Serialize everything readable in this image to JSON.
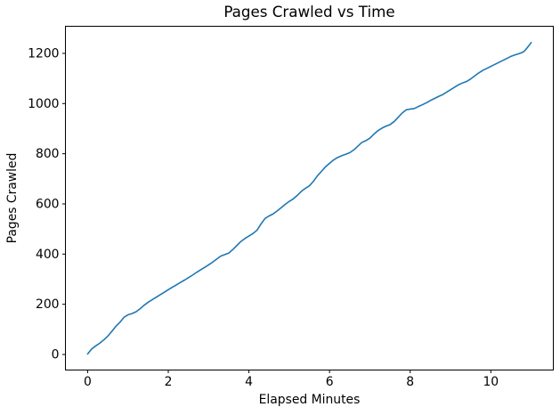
{
  "chart_data": {
    "type": "line",
    "title": "Pages Crawled vs Time",
    "xlabel": "Elapsed Minutes",
    "ylabel": "Pages Crawled",
    "xlim": [
      -0.55,
      11.55
    ],
    "ylim": [
      -62,
      1308
    ],
    "xticks": [
      0,
      2,
      4,
      6,
      8,
      10
    ],
    "yticks": [
      0,
      200,
      400,
      600,
      800,
      1000,
      1200
    ],
    "grid": false,
    "legend": null,
    "line_color": "#1f77b4",
    "line_width": 1.6,
    "background_color": "#ffffff",
    "spine_color": "#000000",
    "series": [
      {
        "name": "pages_crawled",
        "x": [
          0.0,
          0.1,
          0.2,
          0.3,
          0.4,
          0.5,
          0.6,
          0.7,
          0.8,
          0.9,
          1.0,
          1.1,
          1.2,
          1.3,
          1.4,
          1.5,
          1.6,
          1.7,
          1.8,
          1.9,
          2.0,
          2.1,
          2.2,
          2.3,
          2.4,
          2.5,
          2.6,
          2.7,
          2.8,
          2.9,
          3.0,
          3.1,
          3.2,
          3.3,
          3.4,
          3.5,
          3.6,
          3.7,
          3.8,
          3.9,
          4.0,
          4.1,
          4.2,
          4.3,
          4.4,
          4.5,
          4.6,
          4.7,
          4.8,
          4.9,
          5.0,
          5.1,
          5.2,
          5.3,
          5.4,
          5.5,
          5.6,
          5.7,
          5.8,
          5.9,
          6.0,
          6.1,
          6.2,
          6.3,
          6.4,
          6.5,
          6.6,
          6.7,
          6.8,
          6.9,
          7.0,
          7.1,
          7.2,
          7.3,
          7.4,
          7.5,
          7.6,
          7.7,
          7.8,
          7.9,
          8.0,
          8.1,
          8.2,
          8.3,
          8.4,
          8.5,
          8.6,
          8.7,
          8.8,
          8.9,
          9.0,
          9.1,
          9.2,
          9.3,
          9.4,
          9.5,
          9.6,
          9.7,
          9.8,
          9.9,
          10.0,
          10.1,
          10.2,
          10.3,
          10.4,
          10.5,
          10.6,
          10.7,
          10.8,
          10.85,
          10.9,
          10.95,
          11.0
        ],
        "y": [
          2,
          22,
          34,
          45,
          58,
          73,
          92,
          112,
          128,
          148,
          158,
          163,
          170,
          182,
          196,
          208,
          218,
          228,
          238,
          248,
          258,
          268,
          277,
          287,
          296,
          306,
          316,
          327,
          337,
          347,
          357,
          368,
          380,
          392,
          398,
          404,
          418,
          434,
          450,
          462,
          472,
          482,
          495,
          520,
          542,
          552,
          560,
          572,
          585,
          598,
          610,
          620,
          634,
          650,
          662,
          672,
          690,
          712,
          730,
          748,
          762,
          775,
          785,
          792,
          798,
          804,
          815,
          830,
          845,
          852,
          862,
          878,
          892,
          902,
          910,
          916,
          928,
          945,
          962,
          975,
          978,
          980,
          988,
          995,
          1003,
          1012,
          1020,
          1028,
          1035,
          1045,
          1055,
          1065,
          1075,
          1082,
          1088,
          1098,
          1110,
          1122,
          1132,
          1140,
          1148,
          1156,
          1164,
          1172,
          1180,
          1188,
          1194,
          1199,
          1205,
          1212,
          1222,
          1232,
          1243
        ]
      }
    ]
  }
}
